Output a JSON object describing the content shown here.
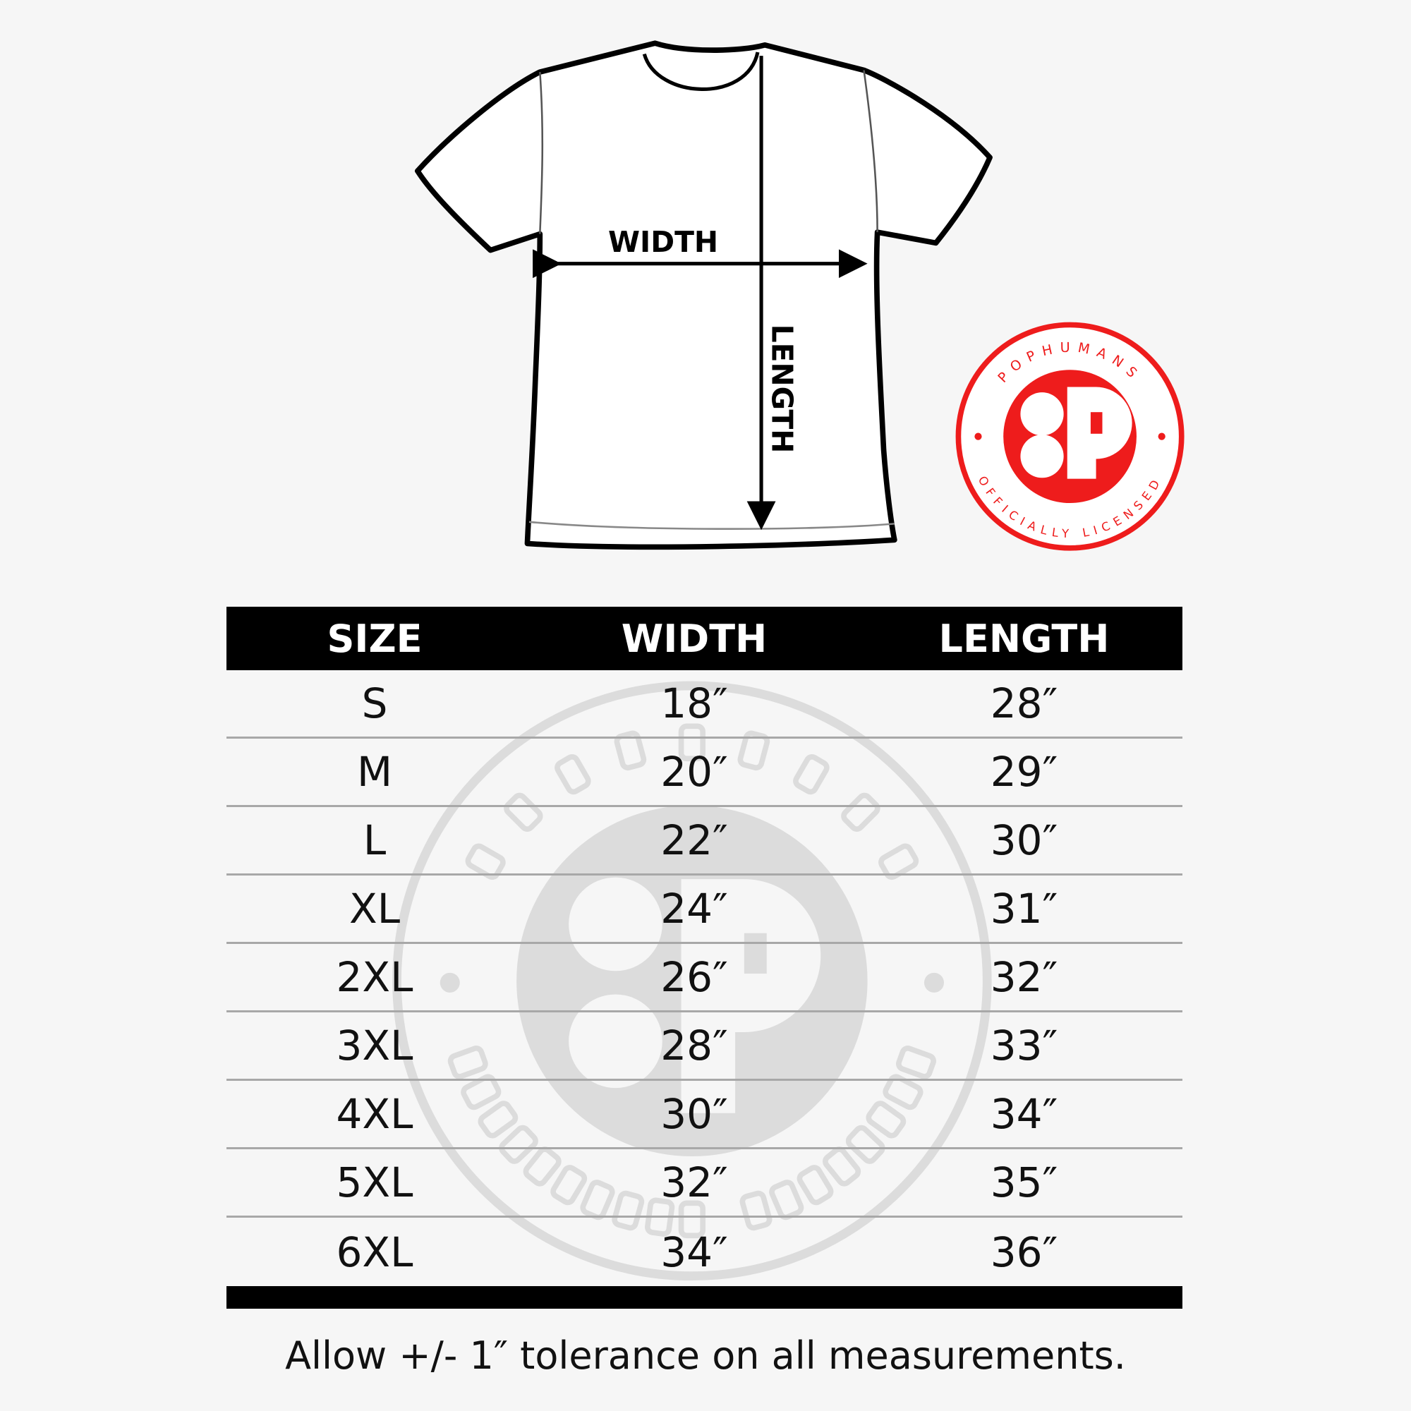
{
  "diagram": {
    "width_label": "WIDTH",
    "length_label": "LENGTH"
  },
  "badge": {
    "top_text": "POPHUMANS",
    "bottom_text": "OFFICIALLY LICENSED",
    "color": "#ee1c1c"
  },
  "watermark": {
    "top_text": "POPHUMANS",
    "bottom_text": "OFFICIALLY LICENSED",
    "color": "#dcdcdc"
  },
  "table": {
    "headers": [
      "SIZE",
      "WIDTH",
      "LENGTH"
    ],
    "rows": [
      [
        "S",
        "18″",
        "28″"
      ],
      [
        "M",
        "20″",
        "29″"
      ],
      [
        "L",
        "22″",
        "30″"
      ],
      [
        "XL",
        "24″",
        "31″"
      ],
      [
        "2XL",
        "26″",
        "32″"
      ],
      [
        "3XL",
        "28″",
        "33″"
      ],
      [
        "4XL",
        "30″",
        "34″"
      ],
      [
        "5XL",
        "32″",
        "35″"
      ],
      [
        "6XL",
        "34″",
        "36″"
      ]
    ]
  },
  "footer": "Allow +/- 1″ tolerance on all measurements."
}
